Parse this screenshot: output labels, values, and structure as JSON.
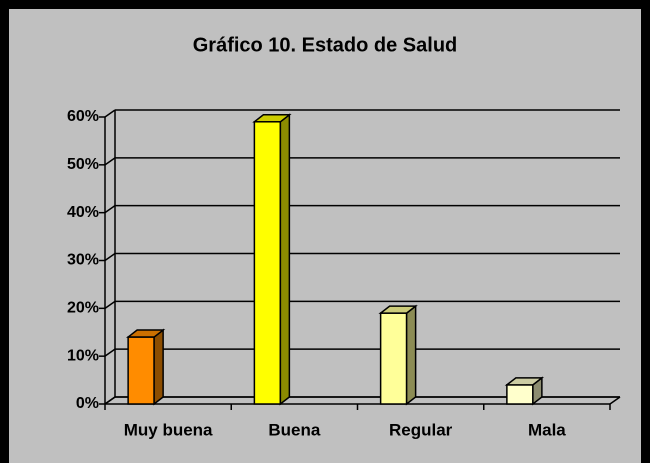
{
  "chart_data": {
    "type": "bar3d",
    "title": "Gráfico 10.  Estado de Salud",
    "categories": [
      "Muy buena",
      "Buena",
      "Regular",
      "Mala"
    ],
    "values": [
      14,
      59,
      19,
      4
    ],
    "colors": [
      "#ff8c00",
      "#ffff00",
      "#ffff99",
      "#ffffcc"
    ],
    "ylim": [
      0,
      60
    ],
    "yticks": [
      {
        "value": 0,
        "label": "0%"
      },
      {
        "value": 10,
        "label": "10%"
      },
      {
        "value": 20,
        "label": "20%"
      },
      {
        "value": 30,
        "label": "30%"
      },
      {
        "value": 40,
        "label": "40%"
      },
      {
        "value": 50,
        "label": "50%"
      },
      {
        "value": 60,
        "label": "60%"
      }
    ],
    "grid": true
  }
}
